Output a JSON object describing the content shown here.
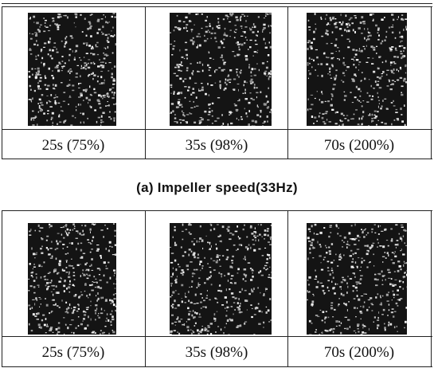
{
  "figure_a": {
    "cells": [
      "25s (75%)",
      "35s (98%)",
      "70s (200%)"
    ],
    "caption": "(a) Impeller speed(33Hz)"
  },
  "figure_b": {
    "cells": [
      "25s (75%)",
      "35s (98%)",
      "70s (200%)"
    ]
  }
}
